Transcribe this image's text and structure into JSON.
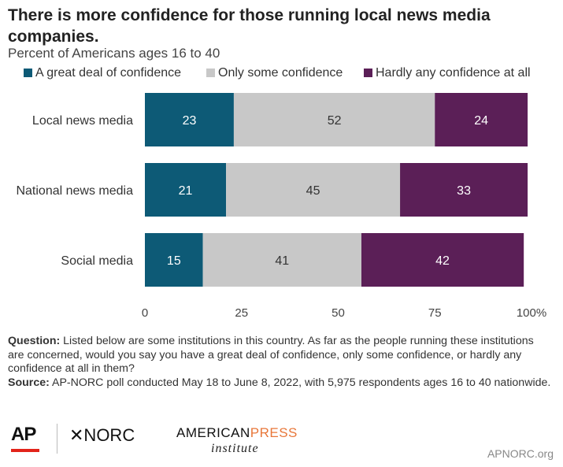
{
  "title": "There is more confidence for those running local news media companies.",
  "subtitle": "Percent of Americans ages 16 to 40",
  "colors": {
    "great_deal": "#0d5a76",
    "only_some": "#c8c8c8",
    "hardly_any": "#5b1f57"
  },
  "legend": [
    {
      "label": "A great deal of confidence",
      "color": "#0d5a76"
    },
    {
      "label": "Only some confidence",
      "color": "#c8c8c8"
    },
    {
      "label": "Hardly any confidence at all",
      "color": "#5b1f57"
    }
  ],
  "chart_data": {
    "type": "bar",
    "orientation": "horizontal",
    "stacked": true,
    "categories": [
      "Local news media",
      "National news media",
      "Social media"
    ],
    "series": [
      {
        "name": "A great deal of confidence",
        "values": [
          23,
          21,
          15
        ],
        "color": "#0d5a76"
      },
      {
        "name": "Only some confidence",
        "values": [
          52,
          45,
          41
        ],
        "color": "#c8c8c8"
      },
      {
        "name": "Hardly any confidence at all",
        "values": [
          24,
          33,
          42
        ],
        "color": "#5b1f57"
      }
    ],
    "xlim": [
      0,
      100
    ],
    "xticks": [
      0,
      25,
      50,
      75,
      100
    ],
    "xtick_labels": [
      "0",
      "25",
      "50",
      "75",
      "100%"
    ],
    "legend_position": "top"
  },
  "notes": {
    "question_label": "Question:",
    "question_text": "Listed below are some institutions in this country. As far as the people running these institutions are concerned, would you say you have a great deal of confidence, only some confidence, or hardly any confidence at all in them?",
    "source_label": "Source:",
    "source_text": "AP-NORC poll conducted May 18 to June 8, 2022, with 5,975 respondents ages 16 to 40 nationwide."
  },
  "logos": {
    "ap": "AP",
    "norc": "✕NORC",
    "api_word1": "AMERICAN",
    "api_word2": "PRESS",
    "api_word3": "institute"
  },
  "site": "APNORC.org"
}
